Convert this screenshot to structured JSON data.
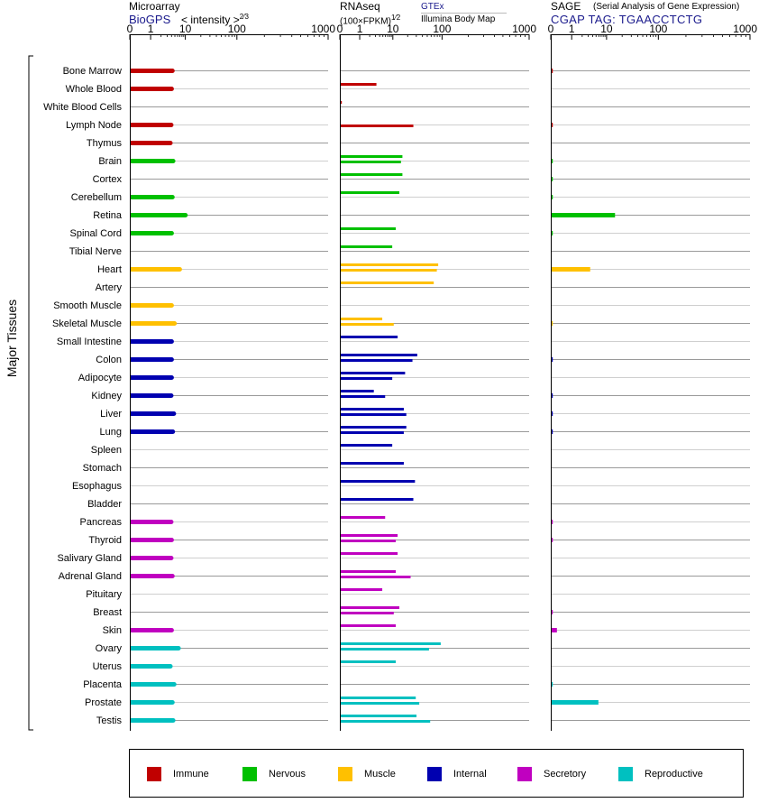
{
  "headers": {
    "microarray": {
      "title": "Microarray",
      "source": "BioGPS",
      "metric_prefix": "< intensity >",
      "metric_power": "2⁄3"
    },
    "rnaseq": {
      "title": "RNAseq",
      "metric_prefix": "(100×FPKM)",
      "metric_power": "1⁄2",
      "source": "GTEx",
      "source2": "Illumina Body Map"
    },
    "sage": {
      "title": "SAGE",
      "subtitle": "(Serial Analysis of Gene Expression)",
      "tag": "CGAP TAG: TGAACCTCTG"
    }
  },
  "y_group_label": "Major Tissues",
  "legend": [
    {
      "label": "Immune",
      "color": "#c00000"
    },
    {
      "label": "Nervous",
      "color": "#00c000"
    },
    {
      "label": "Muscle",
      "color": "#ffc000"
    },
    {
      "label": "Internal",
      "color": "#0000b0"
    },
    {
      "label": "Secretory",
      "color": "#c000c0"
    },
    {
      "label": "Reproductive",
      "color": "#00c0c0"
    }
  ],
  "chart_data": [
    {
      "type": "bar",
      "title": "Microarray",
      "x_ticks": [
        "0",
        "1",
        "10",
        "100",
        "1000"
      ],
      "xlim": [
        0,
        1000
      ],
      "categories": [
        "Bone Marrow",
        "Whole Blood",
        "White Blood Cells",
        "Lymph Node",
        "Thymus",
        "Brain",
        "Cortex",
        "Cerebellum",
        "Retina",
        "Spinal Cord",
        "Tibial Nerve",
        "Heart",
        "Artery",
        "Smooth Muscle",
        "Skeletal Muscle",
        "Small Intestine",
        "Colon",
        "Adipocyte",
        "Kidney",
        "Liver",
        "Lung",
        "Spleen",
        "Stomach",
        "Esophagus",
        "Bladder",
        "Pancreas",
        "Thyroid",
        "Salivary Gland",
        "Adrenal Gland",
        "Pituitary",
        "Breast",
        "Skin",
        "Ovary",
        "Uterus",
        "Placenta",
        "Prostate",
        "Testis"
      ],
      "groups": [
        "Immune",
        "Immune",
        "Immune",
        "Immune",
        "Immune",
        "Nervous",
        "Nervous",
        "Nervous",
        "Nervous",
        "Nervous",
        "Nervous",
        "Muscle",
        "Muscle",
        "Muscle",
        "Muscle",
        "Internal",
        "Internal",
        "Internal",
        "Internal",
        "Internal",
        "Internal",
        "Internal",
        "Internal",
        "Internal",
        "Internal",
        "Secretory",
        "Secretory",
        "Secretory",
        "Secretory",
        "Secretory",
        "Secretory",
        "Secretory",
        "Reproductive",
        "Reproductive",
        "Reproductive",
        "Reproductive",
        "Reproductive"
      ],
      "series": [
        {
          "values": [
            4.0,
            3.8,
            null,
            3.7,
            3.5,
            4.2,
            null,
            4.0,
            9.5,
            3.8,
            null,
            6.5,
            null,
            3.8,
            4.6,
            3.8,
            3.8,
            3.8,
            3.7,
            4.4,
            4.1,
            null,
            null,
            null,
            null,
            3.7,
            3.8,
            3.7,
            4.0,
            null,
            null,
            3.8,
            6.0,
            3.5,
            4.5,
            4.0,
            4.2
          ]
        }
      ]
    },
    {
      "type": "bar",
      "title": "RNAseq",
      "x_ticks": [
        "0",
        "1",
        "10",
        "100",
        "1000"
      ],
      "xlim": [
        0,
        1000
      ],
      "categories": [
        "Bone Marrow",
        "Whole Blood",
        "White Blood Cells",
        "Lymph Node",
        "Thymus",
        "Brain",
        "Cortex",
        "Cerebellum",
        "Retina",
        "Spinal Cord",
        "Tibial Nerve",
        "Heart",
        "Artery",
        "Smooth Muscle",
        "Skeletal Muscle",
        "Small Intestine",
        "Colon",
        "Adipocyte",
        "Kidney",
        "Liver",
        "Lung",
        "Spleen",
        "Stomach",
        "Esophagus",
        "Bladder",
        "Pancreas",
        "Thyroid",
        "Salivary Gland",
        "Adrenal Gland",
        "Pituitary",
        "Breast",
        "Skin",
        "Ovary",
        "Uterus",
        "Placenta",
        "Prostate",
        "Testis"
      ],
      "series": [
        {
          "name": "GTEx",
          "values": [
            null,
            3.0,
            0.02,
            null,
            null,
            15.0,
            15.0,
            13.0,
            null,
            11.0,
            9.0,
            80.0,
            65.0,
            null,
            4.5,
            12.0,
            30.0,
            17.0,
            2.5,
            16.0,
            18.0,
            9.0,
            16.0,
            27.0,
            25.0,
            5.5,
            12.0,
            12.0,
            11.0,
            4.5,
            13.0,
            11.0,
            90.0,
            11.0,
            null,
            28.0,
            29.0
          ]
        },
        {
          "name": "Illumina Body Map",
          "values": [
            null,
            null,
            null,
            25.0,
            null,
            14.0,
            null,
            null,
            null,
            null,
            null,
            75.0,
            null,
            null,
            10.0,
            null,
            24.0,
            9.0,
            5.5,
            18.0,
            16.0,
            null,
            null,
            null,
            null,
            null,
            11.0,
            null,
            22.0,
            null,
            10.0,
            null,
            52.0,
            null,
            null,
            33.0,
            55.0
          ]
        }
      ]
    },
    {
      "type": "bar",
      "title": "SAGE",
      "x_ticks": [
        "0",
        "1",
        "10",
        "100",
        "1000"
      ],
      "xlim": [
        0,
        1000
      ],
      "categories": [
        "Bone Marrow",
        "Whole Blood",
        "White Blood Cells",
        "Lymph Node",
        "Thymus",
        "Brain",
        "Cortex",
        "Cerebellum",
        "Retina",
        "Spinal Cord",
        "Tibial Nerve",
        "Heart",
        "Artery",
        "Smooth Muscle",
        "Skeletal Muscle",
        "Small Intestine",
        "Colon",
        "Adipocyte",
        "Kidney",
        "Liver",
        "Lung",
        "Spleen",
        "Stomach",
        "Esophagus",
        "Bladder",
        "Pancreas",
        "Thyroid",
        "Salivary Gland",
        "Adrenal Gland",
        "Pituitary",
        "Breast",
        "Skin",
        "Ovary",
        "Uterus",
        "Placenta",
        "Prostate",
        "Testis"
      ],
      "series": [
        {
          "values": [
            0.03,
            null,
            null,
            0.03,
            null,
            0.03,
            0.02,
            0.02,
            14.0,
            0.02,
            null,
            3.2,
            null,
            null,
            0.02,
            null,
            0.03,
            null,
            0.03,
            0.03,
            0.03,
            null,
            null,
            null,
            null,
            0.03,
            0.03,
            null,
            null,
            null,
            0.03,
            0.25,
            null,
            null,
            0.02,
            5.5,
            null
          ]
        }
      ]
    }
  ]
}
